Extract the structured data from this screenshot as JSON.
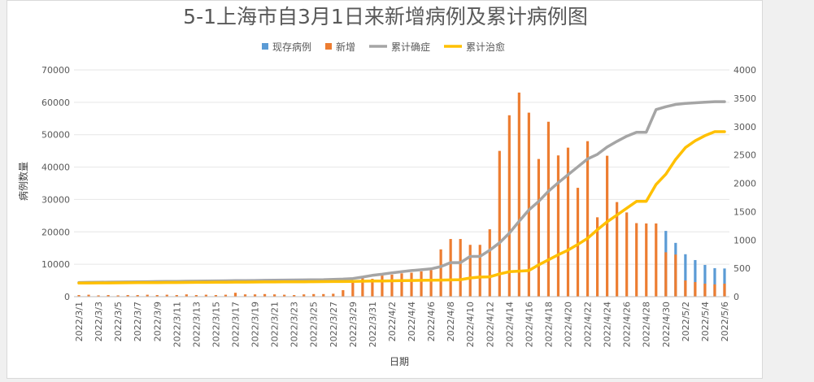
{
  "chart_data": {
    "type": "bar",
    "title": "5-1上海市自3月1日来新增病例及累计病例图",
    "xlabel": "日期",
    "ylabel": "病例数量",
    "ylim": [
      0,
      70000
    ],
    "y_ticks": [
      "0",
      "10000",
      "20000",
      "30000",
      "40000",
      "50000",
      "60000",
      "70000"
    ],
    "y2lim": [
      0,
      4000
    ],
    "y2_ticks": [
      "0",
      "500",
      "1000",
      "1500",
      "2000",
      "2500",
      "3000",
      "3500",
      "4000"
    ],
    "grid": true,
    "legend": "top-center",
    "categories": [
      "2022/3/1",
      "2022/3/2",
      "2022/3/3",
      "2022/3/4",
      "2022/3/5",
      "2022/3/6",
      "2022/3/7",
      "2022/3/8",
      "2022/3/9",
      "2022/3/10",
      "2022/3/11",
      "2022/3/12",
      "2022/3/13",
      "2022/3/14",
      "2022/3/15",
      "2022/3/16",
      "2022/3/17",
      "2022/3/18",
      "2022/3/19",
      "2022/3/20",
      "2022/3/21",
      "2022/3/22",
      "2022/3/23",
      "2022/3/24",
      "2022/3/25",
      "2022/3/26",
      "2022/3/27",
      "2022/3/28",
      "2022/3/29",
      "2022/3/30",
      "2022/3/31",
      "2022/4/1",
      "2022/4/2",
      "2022/4/3",
      "2022/4/4",
      "2022/4/5",
      "2022/4/6",
      "2022/4/7",
      "2022/4/8",
      "2022/4/9",
      "2022/4/10",
      "2022/4/11",
      "2022/4/12",
      "2022/4/13",
      "2022/4/14",
      "2022/4/15",
      "2022/4/16",
      "2022/4/17",
      "2022/4/18",
      "2022/4/19",
      "2022/4/20",
      "2022/4/21",
      "2022/4/22",
      "2022/4/23",
      "2022/4/24",
      "2022/4/25",
      "2022/4/26",
      "2022/4/27",
      "2022/4/28",
      "2022/4/29",
      "2022/4/30",
      "2022/5/1",
      "2022/5/2",
      "2022/5/3",
      "2022/5/4",
      "2022/5/5",
      "2022/5/6"
    ],
    "shown_tick_labels": [
      "2022/3/1",
      "2022/3/3",
      "2022/3/5",
      "2022/3/7",
      "2022/3/9",
      "2022/3/11",
      "2022/3/13",
      "2022/3/15",
      "2022/3/17",
      "2022/3/19",
      "2022/3/21",
      "2022/3/23",
      "2022/3/25",
      "2022/3/27",
      "2022/3/29",
      "2022/3/31",
      "2022/4/2",
      "2022/4/4",
      "2022/4/6",
      "2022/4/8",
      "2022/4/10",
      "2022/4/12",
      "2022/4/14",
      "2022/4/16",
      "2022/4/18",
      "2022/4/20",
      "2022/4/22",
      "2022/4/24",
      "2022/4/26",
      "2022/4/28",
      "2022/4/30",
      "2022/5/2",
      "2022/5/4",
      "2022/5/6"
    ],
    "series": [
      {
        "name": "现存病例",
        "kind": "bar",
        "axis": "left",
        "color": "#5b9bd5",
        "values": [
          0,
          0,
          0,
          0,
          0,
          0,
          0,
          0,
          0,
          0,
          0,
          0,
          0,
          0,
          0,
          0,
          0,
          0,
          0,
          0,
          0,
          0,
          0,
          0,
          0,
          0,
          0,
          0,
          0,
          0,
          0,
          0,
          0,
          0,
          0,
          0,
          0,
          0,
          0,
          0,
          0,
          0,
          0,
          0,
          0,
          0,
          0,
          0,
          0,
          0,
          0,
          0,
          0,
          0,
          0,
          0,
          0,
          0,
          0,
          0,
          20300,
          16600,
          13100,
          11300,
          9800,
          8800,
          8700
        ]
      },
      {
        "name": "新增",
        "kind": "bar",
        "axis": "left",
        "color": "#ed7d31",
        "values": [
          500,
          600,
          400,
          500,
          400,
          500,
          500,
          600,
          500,
          600,
          500,
          700,
          500,
          600,
          500,
          600,
          1200,
          700,
          700,
          800,
          700,
          600,
          500,
          700,
          800,
          800,
          900,
          2000,
          4500,
          6000,
          5500,
          6500,
          6800,
          7200,
          7400,
          7800,
          8200,
          14600,
          17800,
          17800,
          16000,
          16000,
          20800,
          45000,
          56000,
          63000,
          56800,
          42500,
          54000,
          43600,
          46000,
          33600,
          48000,
          24500,
          43500,
          29200,
          26000,
          22700,
          22600,
          22600,
          13700,
          13000,
          5000,
          4500,
          4000,
          3800,
          4000
        ]
      },
      {
        "name": "累计确症",
        "kind": "line",
        "axis": "right",
        "color": "#a5a5a5",
        "values": [
          250,
          252,
          254,
          256,
          258,
          260,
          262,
          264,
          266,
          268,
          270,
          272,
          274,
          276,
          278,
          280,
          282,
          284,
          286,
          288,
          290,
          292,
          294,
          296,
          298,
          300,
          305,
          310,
          320,
          345,
          375,
          395,
          420,
          440,
          460,
          475,
          490,
          530,
          600,
          600,
          710,
          710,
          820,
          950,
          1120,
          1330,
          1530,
          1680,
          1860,
          2010,
          2150,
          2290,
          2430,
          2510,
          2640,
          2740,
          2830,
          2900,
          2900,
          3300,
          3350,
          3390,
          3410,
          3420,
          3430,
          3440,
          3440
        ]
      },
      {
        "name": "累计治愈",
        "kind": "line",
        "axis": "right",
        "color": "#ffc000",
        "values": [
          240,
          241,
          242,
          243,
          244,
          245,
          246,
          247,
          248,
          249,
          250,
          251,
          252,
          253,
          254,
          255,
          256,
          257,
          258,
          259,
          260,
          261,
          262,
          263,
          264,
          265,
          266,
          267,
          270,
          272,
          275,
          277,
          280,
          282,
          285,
          288,
          290,
          292,
          295,
          300,
          330,
          345,
          350,
          400,
          440,
          450,
          460,
          560,
          650,
          740,
          820,
          920,
          1030,
          1180,
          1320,
          1440,
          1560,
          1680,
          1680,
          1980,
          2160,
          2420,
          2630,
          2750,
          2840,
          2910,
          2910
        ]
      }
    ]
  }
}
